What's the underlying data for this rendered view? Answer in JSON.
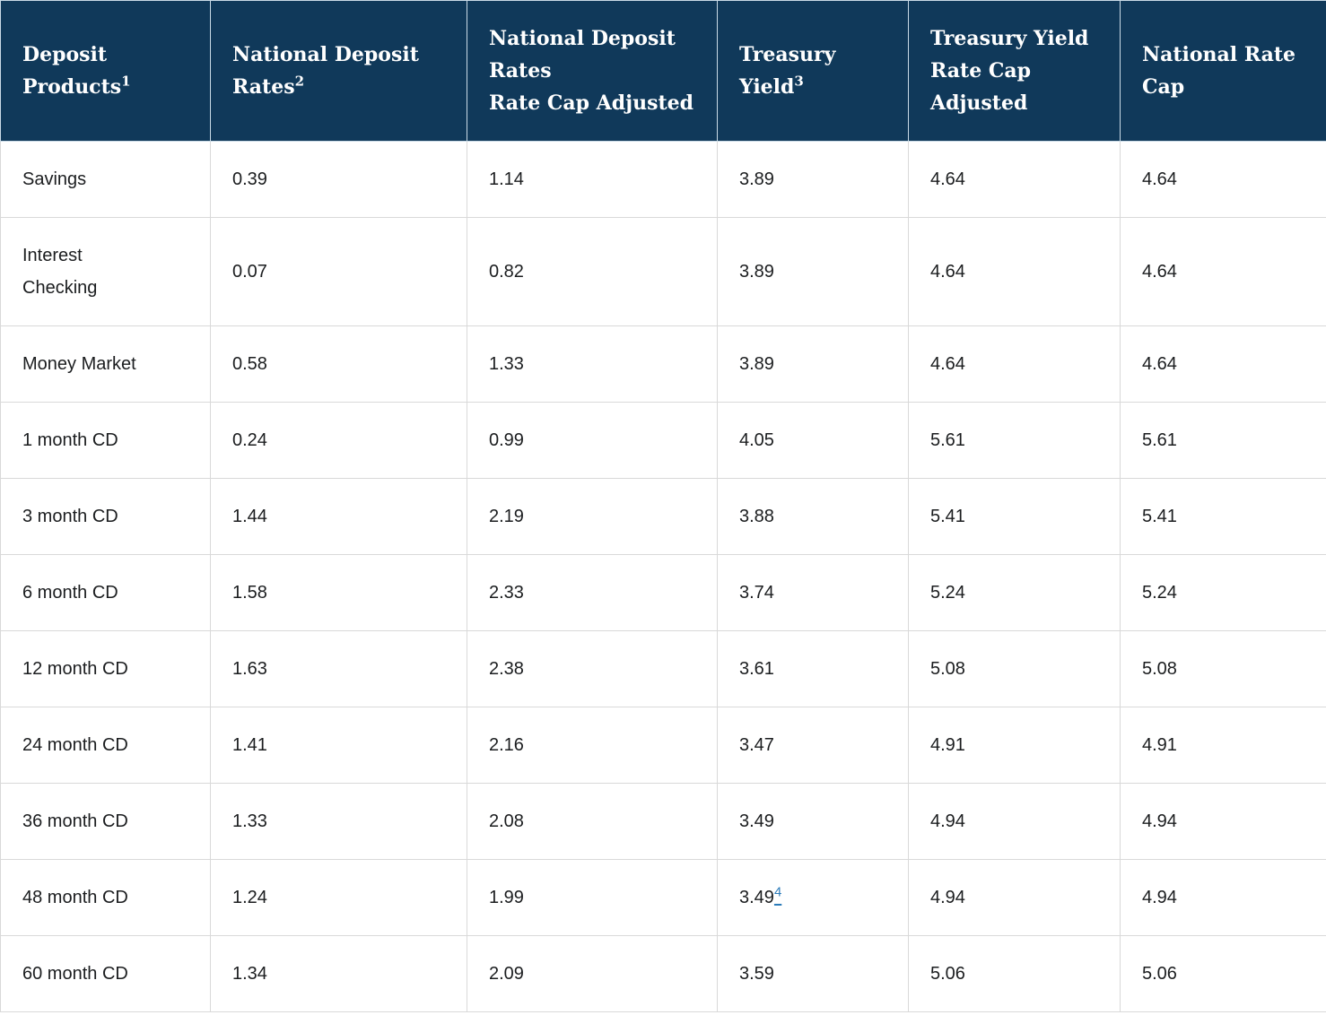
{
  "colors": {
    "header_background": "#10395a",
    "header_text": "#ffffff",
    "header_divider": "#c9dae6",
    "body_text": "#1b1d1f",
    "cell_border": "#d9d9d9",
    "footnote_link_blue": "#2b7bb9"
  },
  "table": {
    "columns": [
      {
        "label": "Deposit\nProducts",
        "sup": "1"
      },
      {
        "label": "National Deposit Rates",
        "sup": "2"
      },
      {
        "label": "National Deposit Rates\nRate Cap Adjusted",
        "sup": ""
      },
      {
        "label": "Treasury\nYield",
        "sup": "3"
      },
      {
        "label": "Treasury Yield\nRate Cap\nAdjusted",
        "sup": ""
      },
      {
        "label": "National Rate\nCap",
        "sup": ""
      }
    ],
    "rows": [
      {
        "product": "Savings",
        "values": [
          "0.39",
          "1.14",
          "3.89",
          "4.64",
          "4.64"
        ],
        "treasury_sup": ""
      },
      {
        "product": "Interest\nChecking",
        "values": [
          "0.07",
          "0.82",
          "3.89",
          "4.64",
          "4.64"
        ],
        "treasury_sup": ""
      },
      {
        "product": "Money Market",
        "values": [
          "0.58",
          "1.33",
          "3.89",
          "4.64",
          "4.64"
        ],
        "treasury_sup": ""
      },
      {
        "product": "1 month CD",
        "values": [
          "0.24",
          "0.99",
          "4.05",
          "5.61",
          "5.61"
        ],
        "treasury_sup": ""
      },
      {
        "product": "3 month CD",
        "values": [
          "1.44",
          "2.19",
          "3.88",
          "5.41",
          "5.41"
        ],
        "treasury_sup": ""
      },
      {
        "product": "6 month CD",
        "values": [
          "1.58",
          "2.33",
          "3.74",
          "5.24",
          "5.24"
        ],
        "treasury_sup": ""
      },
      {
        "product": "12 month CD",
        "values": [
          "1.63",
          "2.38",
          "3.61",
          "5.08",
          "5.08"
        ],
        "treasury_sup": ""
      },
      {
        "product": "24 month CD",
        "values": [
          "1.41",
          "2.16",
          "3.47",
          "4.91",
          "4.91"
        ],
        "treasury_sup": ""
      },
      {
        "product": "36 month CD",
        "values": [
          "1.33",
          "2.08",
          "3.49",
          "4.94",
          "4.94"
        ],
        "treasury_sup": ""
      },
      {
        "product": "48 month CD",
        "values": [
          "1.24",
          "1.99",
          "3.49",
          "4.94",
          "4.94"
        ],
        "treasury_sup": "4"
      },
      {
        "product": "60 month CD",
        "values": [
          "1.34",
          "2.09",
          "3.59",
          "5.06",
          "5.06"
        ],
        "treasury_sup": ""
      }
    ]
  },
  "chart_data": {
    "type": "table",
    "title": "",
    "columns": [
      "Deposit Products(1)",
      "National Deposit Rates(2)",
      "National Deposit Rates Rate Cap Adjusted",
      "Treasury Yield(3)",
      "Treasury Yield Rate Cap Adjusted",
      "National Rate Cap"
    ],
    "categories": [
      "Savings",
      "Interest Checking",
      "Money Market",
      "1 month CD",
      "3 month CD",
      "6 month CD",
      "12 month CD",
      "24 month CD",
      "36 month CD",
      "48 month CD",
      "60 month CD"
    ],
    "series": [
      {
        "name": "National Deposit Rates",
        "values": [
          0.39,
          0.07,
          0.58,
          0.24,
          1.44,
          1.58,
          1.63,
          1.41,
          1.33,
          1.24,
          1.34
        ]
      },
      {
        "name": "National Deposit Rates Rate Cap Adjusted",
        "values": [
          1.14,
          0.82,
          1.33,
          0.99,
          2.19,
          2.33,
          2.38,
          2.16,
          2.08,
          1.99,
          2.09
        ]
      },
      {
        "name": "Treasury Yield",
        "values": [
          3.89,
          3.89,
          3.89,
          4.05,
          3.88,
          3.74,
          3.61,
          3.47,
          3.49,
          3.49,
          3.59
        ]
      },
      {
        "name": "Treasury Yield Rate Cap Adjusted",
        "values": [
          4.64,
          4.64,
          4.64,
          5.61,
          5.41,
          5.24,
          5.08,
          4.91,
          4.94,
          4.94,
          5.06
        ]
      },
      {
        "name": "National Rate Cap",
        "values": [
          4.64,
          4.64,
          4.64,
          5.61,
          5.41,
          5.24,
          5.08,
          4.91,
          4.94,
          4.94,
          5.06
        ]
      }
    ],
    "annotations": [
      "Footnote link 4 on 48 month CD Treasury Yield value 3.49"
    ]
  }
}
